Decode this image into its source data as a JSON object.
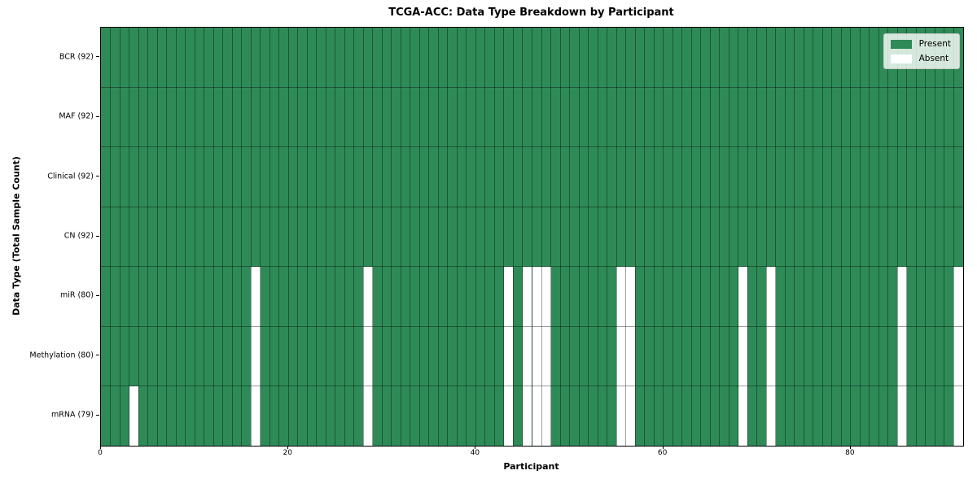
{
  "title": "TCGA-ACC: Data Type Breakdown by Participant",
  "x_axis": {
    "label": "Participant",
    "ticks": [
      "0",
      "20",
      "40",
      "60",
      "80"
    ],
    "tick_values": [
      0,
      20,
      40,
      60,
      80
    ]
  },
  "y_axis": {
    "label": "Data Type (Total Sample Count)"
  },
  "legend": {
    "items": [
      {
        "label": "Present",
        "color": "#2e8b57"
      },
      {
        "label": "Absent",
        "color": "#ffffff"
      }
    ]
  },
  "chart_data": {
    "type": "heatmap",
    "title": "TCGA-ACC: Data Type Breakdown by Participant",
    "xlabel": "Participant",
    "ylabel": "Data Type (Total Sample Count)",
    "x_range": [
      0,
      92
    ],
    "x_ticks": [
      0,
      20,
      40,
      60,
      80
    ],
    "n_participants": 92,
    "grid": true,
    "legend_position": "upper right",
    "colors": {
      "present": "#2e8b57",
      "absent": "#ffffff",
      "grid_line": "rgba(0,0,0,0.38)"
    },
    "rows": [
      {
        "label": "BCR (92)",
        "data_type": "BCR",
        "present_count": 92,
        "absent_participants": []
      },
      {
        "label": "MAF (92)",
        "data_type": "MAF",
        "present_count": 92,
        "absent_participants": []
      },
      {
        "label": "Clinical (92)",
        "data_type": "Clinical",
        "present_count": 92,
        "absent_participants": []
      },
      {
        "label": "CN (92)",
        "data_type": "CN",
        "present_count": 92,
        "absent_participants": []
      },
      {
        "label": "miR (80)",
        "data_type": "miR",
        "present_count": 80,
        "absent_participants": [
          16,
          28,
          43,
          45,
          46,
          47,
          55,
          56,
          68,
          71,
          85,
          91
        ]
      },
      {
        "label": "Methylation (80)",
        "data_type": "Methylation",
        "present_count": 80,
        "absent_participants": [
          16,
          28,
          43,
          45,
          46,
          47,
          55,
          56,
          68,
          71,
          85,
          91
        ]
      },
      {
        "label": "mRNA (79)",
        "data_type": "mRNA",
        "present_count": 79,
        "absent_participants": [
          3,
          16,
          28,
          43,
          45,
          46,
          47,
          55,
          56,
          68,
          71,
          85,
          91
        ]
      }
    ]
  }
}
